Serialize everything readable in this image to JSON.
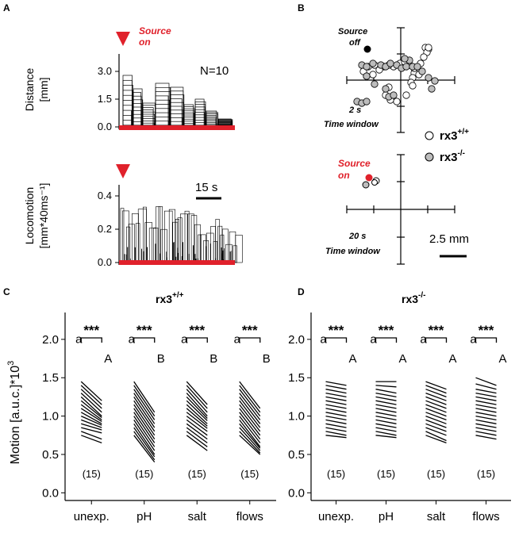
{
  "panels": {
    "A": {
      "label": "A",
      "top": {
        "ylabel_line1": "Distance",
        "ylabel_line2": "[mm]",
        "yticks": [
          "0.0",
          "1.5",
          "3.0"
        ],
        "source_label_line1": "Source",
        "source_label_line2": "on",
        "n_label": "N=10"
      },
      "bottom": {
        "ylabel_line1": "Locomotion",
        "ylabel_line2": "[mm*40ms⁻¹]",
        "yticks": [
          "0.0",
          "0.2",
          "0.4"
        ],
        "scalebar_label": "15 s"
      },
      "colors": {
        "marker": "#e0212b",
        "bar": "#e0212b"
      }
    },
    "B": {
      "label": "B",
      "top": {
        "state_line1": "Source",
        "state_line2": "off",
        "window_line1": "2 s",
        "window_line2": "Time window"
      },
      "bottom": {
        "state_line1": "Source",
        "state_line2": "on",
        "window_line1": "20 s",
        "window_line2": "Time window"
      },
      "legend": [
        {
          "base": "rx3",
          "sup": "+/+",
          "fill": "#ffffff"
        },
        {
          "base": "rx3",
          "sup": "-/-",
          "fill": "#bdbdbd"
        }
      ],
      "scalebar_label": "2.5 mm"
    }
  },
  "chart_data": [
    {
      "panel": "C",
      "type": "line",
      "title_base": "rx3",
      "title_sup": "+/+",
      "ylabel": "Motion [a.u.c.]*10",
      "ylabel_sup": "3",
      "ylim": [
        -0.1,
        2.35
      ],
      "yticks": [
        "0.0",
        "0.5",
        "1.0",
        "1.5",
        "2.0"
      ],
      "categories": [
        "unexp.",
        "pH",
        "salt",
        "flows"
      ],
      "significance": [
        "***",
        "***",
        "***",
        "***"
      ],
      "letters_before": [
        "a",
        "a",
        "a",
        "a"
      ],
      "letters_after": [
        "A",
        "B",
        "B",
        "B"
      ],
      "n_labels": [
        "(15)",
        "(15)",
        "(15)",
        "(15)"
      ],
      "groups": [
        {
          "before": [
            1.45,
            1.4,
            1.35,
            1.3,
            1.25,
            1.2,
            1.15,
            1.1,
            1.05,
            1.0,
            0.95,
            0.9,
            0.85,
            0.8,
            0.75
          ],
          "after": [
            1.2,
            1.15,
            1.1,
            1.05,
            1.0,
            0.98,
            0.95,
            0.93,
            0.9,
            0.88,
            0.85,
            0.82,
            0.78,
            0.7,
            0.65
          ]
        },
        {
          "before": [
            1.45,
            1.4,
            1.35,
            1.3,
            1.25,
            1.2,
            1.15,
            1.1,
            1.05,
            1.0,
            0.95,
            0.9,
            0.85,
            0.8,
            0.75
          ],
          "after": [
            1.05,
            1.0,
            0.95,
            0.9,
            0.85,
            0.8,
            0.75,
            0.7,
            0.65,
            0.6,
            0.55,
            0.5,
            0.47,
            0.43,
            0.4
          ]
        },
        {
          "before": [
            1.45,
            1.4,
            1.35,
            1.3,
            1.25,
            1.2,
            1.15,
            1.1,
            1.05,
            1.0,
            0.95,
            0.9,
            0.85,
            0.8,
            0.75
          ],
          "after": [
            1.15,
            1.1,
            1.05,
            1.0,
            0.97,
            0.94,
            0.9,
            0.87,
            0.84,
            0.8,
            0.75,
            0.7,
            0.65,
            0.6,
            0.55
          ]
        },
        {
          "before": [
            1.45,
            1.4,
            1.35,
            1.3,
            1.25,
            1.2,
            1.15,
            1.1,
            1.05,
            1.0,
            0.95,
            0.9,
            0.85,
            0.8,
            0.75
          ],
          "after": [
            1.1,
            1.05,
            1.0,
            0.95,
            0.9,
            0.85,
            0.8,
            0.75,
            0.7,
            0.65,
            0.6,
            0.58,
            0.55,
            0.52,
            0.5
          ]
        }
      ]
    },
    {
      "panel": "D",
      "type": "line",
      "title_base": "rx3",
      "title_sup": "-/-",
      "ylim": [
        -0.1,
        2.35
      ],
      "yticks": [
        "0.0",
        "0.5",
        "1.0",
        "1.5",
        "2.0"
      ],
      "categories": [
        "unexp.",
        "pH",
        "salt",
        "flows"
      ],
      "significance": [
        "***",
        "***",
        "***",
        "***"
      ],
      "letters_before": [
        "a",
        "a",
        "a",
        "a"
      ],
      "letters_after": [
        "A",
        "A",
        "A",
        "A"
      ],
      "n_labels": [
        "(15)",
        "(15)",
        "(15)",
        "(15)"
      ],
      "groups": [
        {
          "before": [
            1.45,
            1.4,
            1.35,
            1.3,
            1.25,
            1.2,
            1.15,
            1.1,
            1.05,
            1.0,
            0.95,
            0.9,
            0.85,
            0.8,
            0.75
          ],
          "after": [
            1.4,
            1.35,
            1.3,
            1.25,
            1.2,
            1.15,
            1.1,
            1.05,
            1.0,
            0.95,
            0.9,
            0.85,
            0.8,
            0.75,
            0.72
          ]
        },
        {
          "before": [
            1.45,
            1.4,
            1.35,
            1.3,
            1.25,
            1.2,
            1.15,
            1.1,
            1.05,
            1.0,
            0.95,
            0.9,
            0.85,
            0.8,
            0.75
          ],
          "after": [
            1.45,
            1.38,
            1.3,
            1.25,
            1.2,
            1.15,
            1.1,
            1.05,
            1.0,
            0.95,
            0.9,
            0.85,
            0.8,
            0.75,
            0.72
          ]
        },
        {
          "before": [
            1.45,
            1.4,
            1.35,
            1.3,
            1.25,
            1.2,
            1.15,
            1.1,
            1.05,
            1.0,
            0.95,
            0.9,
            0.85,
            0.8,
            0.75
          ],
          "after": [
            1.35,
            1.3,
            1.25,
            1.2,
            1.15,
            1.1,
            1.05,
            1.0,
            0.95,
            0.9,
            0.85,
            0.8,
            0.75,
            0.68,
            0.65
          ]
        },
        {
          "before": [
            1.5,
            1.42,
            1.35,
            1.3,
            1.25,
            1.2,
            1.15,
            1.1,
            1.05,
            1.0,
            0.95,
            0.9,
            0.85,
            0.8,
            0.75
          ],
          "after": [
            1.4,
            1.35,
            1.3,
            1.25,
            1.2,
            1.15,
            1.1,
            1.05,
            1.0,
            0.95,
            0.9,
            0.85,
            0.8,
            0.75,
            0.7
          ]
        }
      ]
    }
  ]
}
